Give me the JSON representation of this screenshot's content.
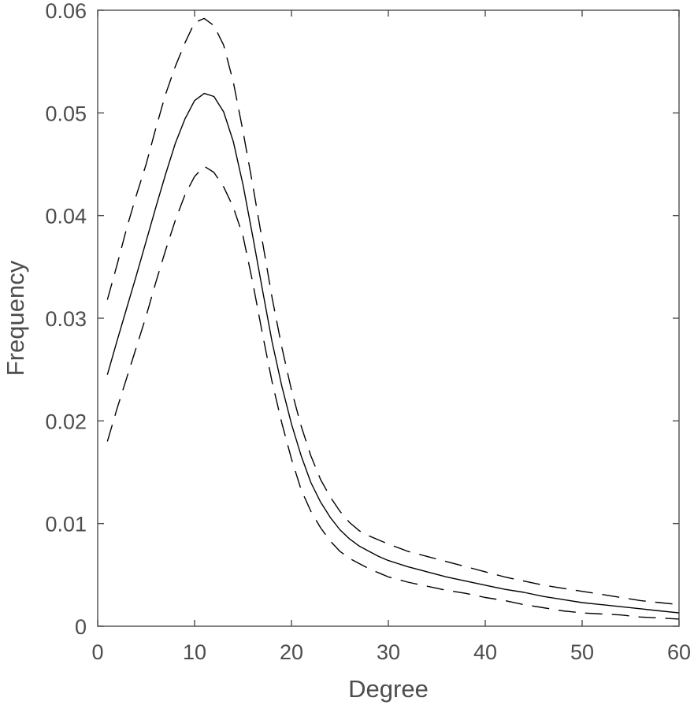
{
  "chart_data": {
    "type": "line",
    "title": "",
    "xlabel": "Degree",
    "ylabel": "Frequency",
    "xlim": [
      0,
      60
    ],
    "ylim": [
      0,
      0.06
    ],
    "xticks": [
      0,
      10,
      20,
      30,
      40,
      50,
      60
    ],
    "xtick_labels": [
      "0",
      "10",
      "20",
      "30",
      "40",
      "50",
      "60"
    ],
    "yticks": [
      0,
      0.01,
      0.02,
      0.03,
      0.04,
      0.05,
      0.06
    ],
    "ytick_labels": [
      "0",
      "0.01",
      "0.02",
      "0.03",
      "0.04",
      "0.05",
      "0.06"
    ],
    "grid": false,
    "legend": "none",
    "line_color": "#000000",
    "axis_color": "#4d4d4d",
    "series": [
      {
        "style": "solid",
        "x": [
          1,
          2,
          3,
          4,
          5,
          6,
          7,
          8,
          9,
          10,
          11,
          12,
          13,
          14,
          15,
          16,
          17,
          18,
          19,
          20,
          21,
          22,
          23,
          24,
          25,
          26,
          27,
          28,
          29,
          30,
          32,
          34,
          36,
          38,
          40,
          42,
          44,
          46,
          48,
          50,
          52,
          54,
          56,
          58,
          60
        ],
        "y": [
          0.0245,
          0.0278,
          0.031,
          0.0342,
          0.0375,
          0.0408,
          0.044,
          0.047,
          0.0494,
          0.0512,
          0.0519,
          0.0516,
          0.0501,
          0.0472,
          0.043,
          0.038,
          0.0328,
          0.0277,
          0.0234,
          0.0197,
          0.0166,
          0.014,
          0.0121,
          0.0106,
          0.0094,
          0.0085,
          0.0078,
          0.0073,
          0.0068,
          0.0064,
          0.0058,
          0.0053,
          0.0048,
          0.0044,
          0.004,
          0.0036,
          0.0033,
          0.0029,
          0.0026,
          0.0023,
          0.0021,
          0.0019,
          0.0017,
          0.0015,
          0.0013
        ]
      },
      {
        "style": "dashed",
        "x": [
          1,
          2,
          3,
          4,
          5,
          6,
          7,
          8,
          9,
          10,
          11,
          12,
          13,
          14,
          15,
          16,
          17,
          18,
          19,
          20,
          21,
          22,
          23,
          24,
          25,
          26,
          27,
          28,
          29,
          30,
          32,
          34,
          36,
          38,
          40,
          42,
          44,
          46,
          48,
          50,
          52,
          54,
          56,
          58,
          60
        ],
        "y": [
          0.0318,
          0.0352,
          0.0388,
          0.042,
          0.045,
          0.0485,
          0.0518,
          0.0545,
          0.0568,
          0.0588,
          0.0592,
          0.0585,
          0.0566,
          0.053,
          0.0482,
          0.043,
          0.0375,
          0.032,
          0.0272,
          0.023,
          0.0195,
          0.0166,
          0.0143,
          0.0126,
          0.0112,
          0.0101,
          0.0093,
          0.0088,
          0.0084,
          0.008,
          0.0073,
          0.0068,
          0.0063,
          0.0058,
          0.0053,
          0.0048,
          0.0044,
          0.004,
          0.0037,
          0.0034,
          0.0031,
          0.0028,
          0.0025,
          0.0023,
          0.0021
        ]
      },
      {
        "style": "dashed",
        "x": [
          1,
          2,
          3,
          4,
          5,
          6,
          7,
          8,
          9,
          10,
          11,
          12,
          13,
          14,
          15,
          16,
          17,
          18,
          19,
          20,
          21,
          22,
          23,
          24,
          25,
          26,
          27,
          28,
          29,
          30,
          32,
          34,
          36,
          38,
          40,
          42,
          44,
          46,
          48,
          50,
          52,
          54,
          56,
          58,
          60
        ],
        "y": [
          0.018,
          0.0212,
          0.0242,
          0.0272,
          0.0302,
          0.0335,
          0.0366,
          0.0395,
          0.042,
          0.0438,
          0.0448,
          0.0442,
          0.0428,
          0.0408,
          0.038,
          0.0335,
          0.0285,
          0.0238,
          0.0198,
          0.0163,
          0.0133,
          0.0112,
          0.0096,
          0.0083,
          0.0073,
          0.0066,
          0.0061,
          0.0056,
          0.0052,
          0.0048,
          0.0043,
          0.0039,
          0.0035,
          0.0032,
          0.0028,
          0.0025,
          0.0021,
          0.0018,
          0.0015,
          0.0013,
          0.0012,
          0.0011,
          0.0009,
          0.0008,
          0.0007
        ]
      }
    ]
  }
}
